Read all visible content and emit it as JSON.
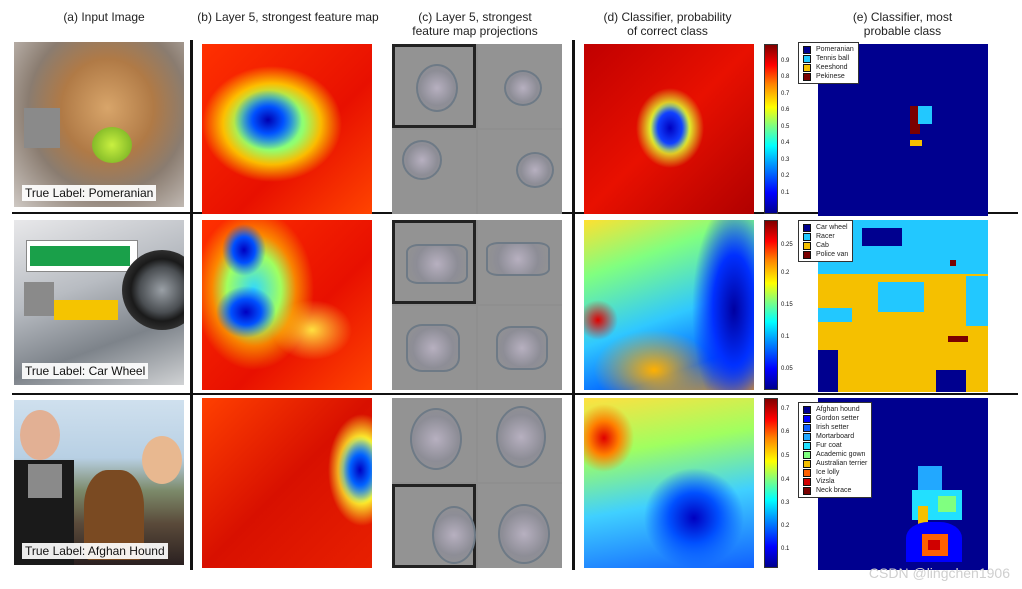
{
  "headers": {
    "a": "(a) Input Image",
    "b": "(b) Layer 5, strongest feature map",
    "c1": "(c) Layer 5, strongest",
    "c2": "feature map projections",
    "d1": "(d) Classifier, probability",
    "d2": "of correct class",
    "e1": "(e) Classifier, most",
    "e2": "probable class"
  },
  "rows": [
    {
      "true_label": "True Label: Pomeranian",
      "colorbar_ticks": [
        "0.9",
        "0.8",
        "0.7",
        "0.6",
        "0.5",
        "0.4",
        "0.3",
        "0.2",
        "0.1"
      ],
      "legend": [
        {
          "name": "Pomeranian",
          "color": "#00008f"
        },
        {
          "name": "Tennis ball",
          "color": "#22c8ff"
        },
        {
          "name": "Keeshond",
          "color": "#f5c000"
        },
        {
          "name": "Pekinese",
          "color": "#7a0000"
        }
      ]
    },
    {
      "true_label": "True Label: Car Wheel",
      "colorbar_ticks": [
        "0.25",
        "0.2",
        "0.15",
        "0.1",
        "0.05"
      ],
      "legend": [
        {
          "name": "Car wheel",
          "color": "#00008f"
        },
        {
          "name": "Racer",
          "color": "#22c8ff"
        },
        {
          "name": "Cab",
          "color": "#f5c000"
        },
        {
          "name": "Police van",
          "color": "#7a0000"
        }
      ]
    },
    {
      "true_label": "True Label: Afghan Hound",
      "colorbar_ticks": [
        "0.7",
        "0.6",
        "0.5",
        "0.4",
        "0.3",
        "0.2",
        "0.1"
      ],
      "legend": [
        {
          "name": "Afghan hound",
          "color": "#00008f"
        },
        {
          "name": "Gordon setter",
          "color": "#0000ff"
        },
        {
          "name": "Irish setter",
          "color": "#1060ff"
        },
        {
          "name": "Mortarboard",
          "color": "#22a8ff"
        },
        {
          "name": "Fur coat",
          "color": "#22e0ff"
        },
        {
          "name": "Academic gown",
          "color": "#80ff80"
        },
        {
          "name": "Australian terrier",
          "color": "#f5c000"
        },
        {
          "name": "Ice lolly",
          "color": "#ff6000"
        },
        {
          "name": "Vizsla",
          "color": "#d00000"
        },
        {
          "name": "Neck brace",
          "color": "#7a0000"
        }
      ]
    }
  ],
  "watermark": "CSDN @lingchen1906"
}
